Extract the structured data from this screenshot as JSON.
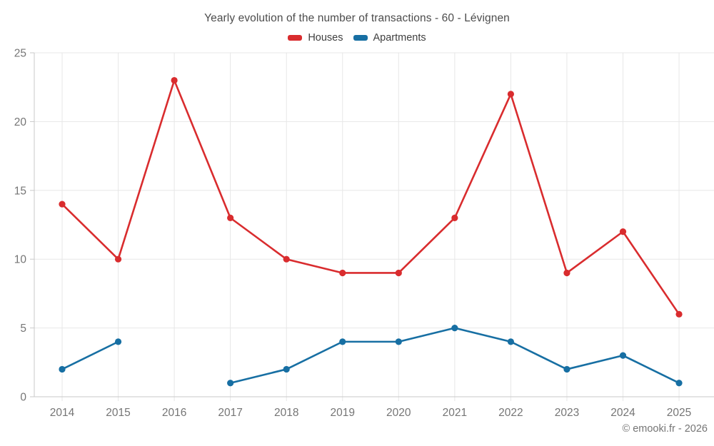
{
  "chart_data": {
    "type": "line",
    "title": "Yearly evolution of the number of transactions - 60 - Lévignen",
    "categories": [
      "2014",
      "2015",
      "2016",
      "2017",
      "2018",
      "2019",
      "2020",
      "2021",
      "2022",
      "2023",
      "2024",
      "2025"
    ],
    "series": [
      {
        "name": "Houses",
        "color": "#d92c2e",
        "values": [
          14,
          10,
          23,
          13,
          10,
          9,
          9,
          13,
          22,
          9,
          12,
          6
        ]
      },
      {
        "name": "Apartments",
        "color": "#176fa3",
        "values": [
          2,
          4,
          null,
          1,
          2,
          4,
          4,
          5,
          4,
          2,
          3,
          1
        ]
      }
    ],
    "ylim": [
      0,
      25
    ],
    "yticks": [
      0,
      5,
      10,
      15,
      20,
      25
    ],
    "grid": true,
    "legend_position": "top"
  },
  "attribution": "© emooki.fr - 2026",
  "colors": {
    "gridline": "#e7e7e7",
    "axis": "#c9c9c9",
    "title_text": "#4c4c4c",
    "legend_text": "#3f3f3f",
    "axis_label_text": "#757575",
    "attribution_text": "#757575",
    "background": "#ffffff"
  }
}
